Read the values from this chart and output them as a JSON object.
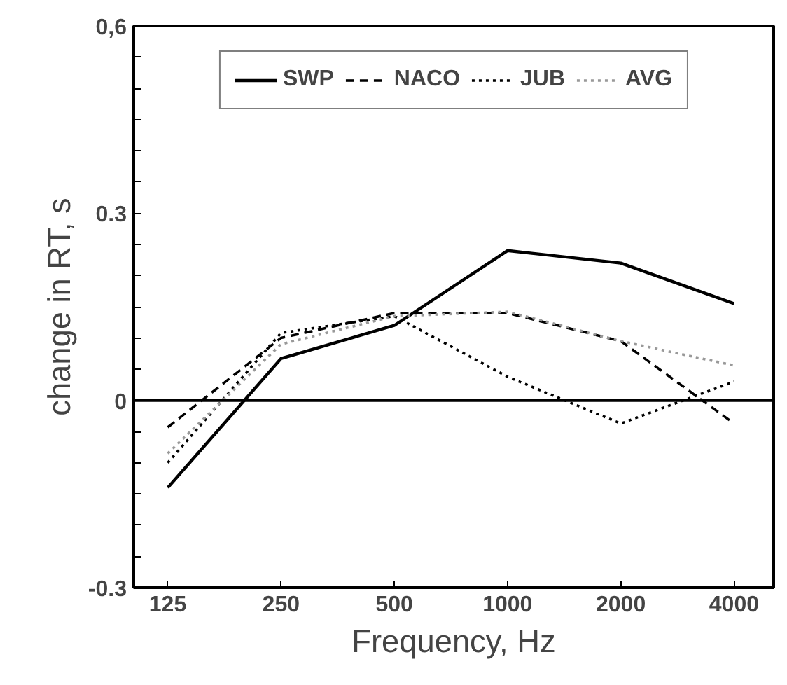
{
  "chart_data": {
    "type": "line",
    "xlabel": "Frequency, Hz",
    "ylabel": "change in RT, s",
    "categories": [
      "125",
      "250",
      "500",
      "1000",
      "2000",
      "4000"
    ],
    "series": [
      {
        "name": "SWP",
        "color": "#000000",
        "line_style": "solid",
        "values": [
          -0.14,
          0.067,
          0.12,
          0.24,
          0.22,
          0.155
        ]
      },
      {
        "name": "NACO",
        "color": "#000000",
        "line_style": "dashed",
        "values": [
          -0.043,
          0.1,
          0.14,
          0.14,
          0.095,
          -0.037
        ]
      },
      {
        "name": "JUB",
        "color": "#000000",
        "line_style": "dotted",
        "values": [
          -0.1,
          0.108,
          0.135,
          0.038,
          -0.037,
          0.03
        ]
      },
      {
        "name": "AVG",
        "color": "#999999",
        "line_style": "dotted",
        "values": [
          -0.085,
          0.09,
          0.135,
          0.142,
          0.095,
          0.056
        ]
      }
    ],
    "ylim": [
      -0.3,
      0.6
    ],
    "yticks": [
      {
        "value": -0.3,
        "label": "-0.3"
      },
      {
        "value": -0.25,
        "label": null
      },
      {
        "value": -0.2,
        "label": null
      },
      {
        "value": -0.15,
        "label": null
      },
      {
        "value": -0.1,
        "label": null
      },
      {
        "value": -0.05,
        "label": null
      },
      0,
      {
        "value": 0.05,
        "label": null
      },
      {
        "value": 0.1,
        "label": null
      },
      {
        "value": 0.15,
        "label": null
      },
      {
        "value": 0.2,
        "label": null
      },
      {
        "value": 0.25,
        "label": null
      },
      {
        "value": 0.3,
        "label": "0.3"
      },
      {
        "value": 0.35,
        "label": null
      },
      {
        "value": 0.4,
        "label": null
      },
      {
        "value": 0.45,
        "label": null
      },
      {
        "value": 0.5,
        "label": null
      },
      {
        "value": 0.55,
        "label": null
      },
      {
        "value": 0.6,
        "label": "0,6"
      }
    ],
    "ref_lines": [
      {
        "axis": "y",
        "value": 0,
        "color": "#000000",
        "line_style": "solid"
      }
    ],
    "legend": "top",
    "grid": false
  }
}
